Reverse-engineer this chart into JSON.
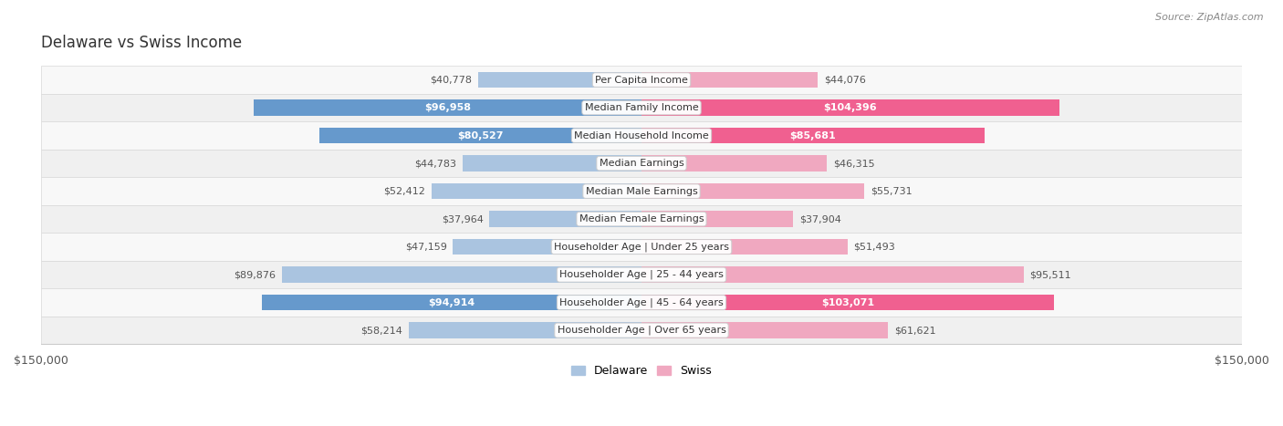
{
  "title": "Delaware vs Swiss Income",
  "source": "Source: ZipAtlas.com",
  "categories": [
    "Per Capita Income",
    "Median Family Income",
    "Median Household Income",
    "Median Earnings",
    "Median Male Earnings",
    "Median Female Earnings",
    "Householder Age | Under 25 years",
    "Householder Age | 25 - 44 years",
    "Householder Age | 45 - 64 years",
    "Householder Age | Over 65 years"
  ],
  "delaware_values": [
    40778,
    96958,
    80527,
    44783,
    52412,
    37964,
    47159,
    89876,
    94914,
    58214
  ],
  "swiss_values": [
    44076,
    104396,
    85681,
    46315,
    55731,
    37904,
    51493,
    95511,
    103071,
    61621
  ],
  "max_value": 150000,
  "delaware_color_normal": "#aac4e0",
  "delaware_color_highlight": "#6699cc",
  "swiss_color_normal": "#f0a8c0",
  "swiss_color_highlight": "#f06090",
  "highlight_rows": [
    1,
    7,
    8
  ],
  "background_color": "#ffffff",
  "row_colors": [
    "#f8f8f8",
    "#f0f0f0"
  ],
  "row_border_color": "#d8d8d8",
  "title_fontsize": 12,
  "source_fontsize": 8,
  "cat_label_fontsize": 8,
  "value_fontsize": 8,
  "legend_fontsize": 9
}
